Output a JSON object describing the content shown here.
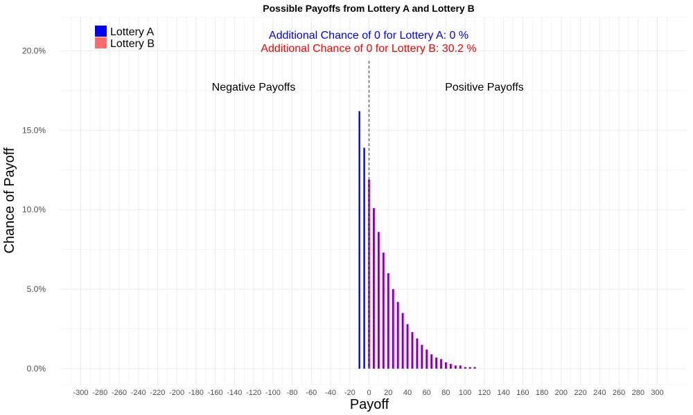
{
  "chart_data": {
    "type": "bar",
    "title": "Possible Payoffs from Lottery A and Lottery B",
    "xlabel": "Payoff",
    "ylabel": "Chance of Payoff",
    "xlim": [
      -310,
      310
    ],
    "ylim": [
      0,
      0.21
    ],
    "x_ticks": [
      -300,
      -280,
      -260,
      -240,
      -220,
      -200,
      -180,
      -160,
      -140,
      -120,
      -100,
      -80,
      -60,
      -40,
      -20,
      0,
      20,
      40,
      60,
      80,
      100,
      120,
      140,
      160,
      180,
      200,
      220,
      240,
      260,
      280,
      300
    ],
    "x_tick_labels": [
      "-300",
      "-280",
      "-260",
      "-240",
      "-220",
      "-200",
      "-180",
      "-160",
      "-140",
      "-120",
      "-100",
      "-80",
      "-60",
      "-40",
      "-20",
      "0",
      "20",
      "40",
      "60",
      "80",
      "100",
      "120",
      "140",
      "160",
      "180",
      "200",
      "220",
      "240",
      "260",
      "280",
      "300"
    ],
    "y_ticks": [
      0,
      0.05,
      0.1,
      0.15,
      0.2
    ],
    "y_tick_labels": [
      "0.0%",
      "5.0%",
      "10.0%",
      "15.0%",
      "20.0%"
    ],
    "grid": true,
    "legend_position": "top-left",
    "series": [
      {
        "name": "Lottery A",
        "color": "#0000ff",
        "x": [
          -10,
          -5,
          0,
          5,
          10,
          15,
          20,
          25,
          30,
          35,
          40,
          45,
          50,
          55,
          60,
          65,
          70,
          75,
          80,
          85,
          90,
          95,
          100,
          105,
          110
        ],
        "values": [
          0.162,
          0.139,
          0.119,
          0.101,
          0.086,
          0.073,
          0.06,
          0.05,
          0.042,
          0.035,
          0.028,
          0.023,
          0.019,
          0.015,
          0.012,
          0.009,
          0.007,
          0.006,
          0.004,
          0.003,
          0.002,
          0.002,
          0.001,
          0.001,
          0.001
        ]
      },
      {
        "name": "Lottery B",
        "color": "#ff6b6b",
        "x": [
          0,
          5,
          10,
          15,
          20,
          25,
          30,
          35,
          40,
          45,
          50,
          55,
          60,
          65,
          70,
          75,
          80,
          85,
          90,
          95,
          100,
          105,
          110
        ],
        "values": [
          0.119,
          0.101,
          0.086,
          0.073,
          0.06,
          0.05,
          0.042,
          0.035,
          0.028,
          0.023,
          0.019,
          0.015,
          0.012,
          0.009,
          0.007,
          0.006,
          0.004,
          0.003,
          0.002,
          0.002,
          0.001,
          0.001,
          0.001
        ]
      }
    ],
    "overlap_color": "#7a00b8",
    "zero_line": {
      "x": 0,
      "style": "dashed",
      "color": "#666666"
    },
    "annotations": {
      "lottery_a_zero": {
        "text": "Additional Chance of 0 for Lottery A:  0 %",
        "color": "#0000ff"
      },
      "lottery_b_zero": {
        "text": "Additional Chance of 0 for Lottery B:  30.2 %",
        "color": "#ff0000"
      },
      "negative_region": "Negative Payoffs",
      "positive_region": "Positive Payoffs"
    }
  }
}
